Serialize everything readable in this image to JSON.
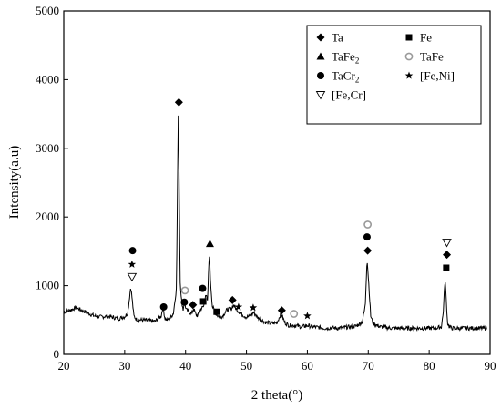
{
  "chart_data": {
    "type": "line",
    "xlabel": "2 theta(°)",
    "ylabel": "Intensity(a.u)",
    "xlim": [
      20,
      90
    ],
    "ylim": [
      0,
      5000
    ],
    "xticks": [
      "20",
      "30",
      "40",
      "50",
      "60",
      "70",
      "80",
      "90"
    ],
    "yticks": [
      "0",
      "1000",
      "2000",
      "3000",
      "4000",
      "5000"
    ],
    "grid": false,
    "legend_position": "top-right",
    "legend": [
      {
        "key": "Ta",
        "label": "Ta",
        "marker": "diamond",
        "hollow": false
      },
      {
        "key": "Fe",
        "label": "Fe",
        "marker": "square",
        "hollow": false
      },
      {
        "key": "TaFe2",
        "label": "TaFe",
        "sub": "2",
        "marker": "triangle",
        "hollow": false
      },
      {
        "key": "TaFe",
        "label": "TaFe",
        "marker": "ring",
        "hollow": true
      },
      {
        "key": "TaCr2",
        "label": "TaCr",
        "sub": "2",
        "marker": "circle",
        "hollow": false
      },
      {
        "key": "FeNi",
        "label": "[Fe,Ni]",
        "marker": "star",
        "hollow": false
      },
      {
        "key": "FeCr",
        "label": "[Fe,Cr]",
        "marker": "triangle-down",
        "hollow": true
      }
    ],
    "pattern": {
      "x": [
        20,
        21,
        22,
        23,
        24,
        25,
        26,
        27,
        28,
        29,
        30,
        30.5,
        31,
        31.2,
        31.5,
        32,
        33,
        34,
        35,
        36,
        36.3,
        36.6,
        37,
        37.5,
        38,
        38.5,
        38.8,
        38.9,
        39.1,
        39.3,
        39.6,
        39.8,
        40.1,
        40.5,
        41,
        41.3,
        41.7,
        42,
        42.5,
        43,
        43.3,
        43.6,
        43.9,
        44.1,
        44.4,
        44.8,
        45.3,
        46,
        46.8,
        47.5,
        47.9,
        48.3,
        48.8,
        49.3,
        50,
        50.6,
        51.2,
        51.8,
        52.5,
        53,
        54,
        55,
        55.7,
        56.3,
        57,
        58,
        59,
        60,
        61,
        62,
        63,
        64,
        65,
        66,
        67,
        68,
        69,
        69.5,
        69.8,
        70.1,
        70.4,
        70.8,
        71.5,
        72,
        73,
        74,
        75,
        76,
        77,
        78,
        79,
        80,
        81,
        82,
        82.3,
        82.6,
        82.8,
        83,
        83.3,
        83.8,
        85,
        86,
        87,
        88,
        89,
        89.5
      ],
      "y": [
        620,
        640,
        680,
        640,
        600,
        560,
        545,
        555,
        540,
        520,
        550,
        600,
        990,
        830,
        560,
        500,
        500,
        490,
        480,
        560,
        700,
        520,
        500,
        530,
        600,
        960,
        3500,
        2900,
        1100,
        800,
        650,
        770,
        650,
        620,
        590,
        670,
        580,
        560,
        660,
        700,
        890,
        760,
        1490,
        1050,
        700,
        620,
        560,
        550,
        650,
        660,
        720,
        660,
        620,
        580,
        540,
        560,
        610,
        540,
        500,
        470,
        450,
        460,
        600,
        460,
        420,
        420,
        400,
        420,
        400,
        390,
        380,
        385,
        380,
        390,
        400,
        410,
        470,
        700,
        1400,
        1000,
        560,
        450,
        420,
        400,
        390,
        380,
        380,
        375,
        380,
        380,
        380,
        380,
        380,
        400,
        600,
        1100,
        800,
        460,
        400,
        380,
        380,
        380,
        380,
        380,
        380,
        380
      ]
    },
    "markers": [
      {
        "symbol": "circle",
        "x": 31.3,
        "y": 1510
      },
      {
        "symbol": "star",
        "x": 31.2,
        "y": 1310
      },
      {
        "symbol": "triangle-down",
        "x": 31.2,
        "y": 1130
      },
      {
        "symbol": "circle",
        "x": 36.4,
        "y": 690
      },
      {
        "symbol": "diamond",
        "x": 38.9,
        "y": 3670
      },
      {
        "symbol": "ring",
        "x": 39.9,
        "y": 930
      },
      {
        "symbol": "circle",
        "x": 39.8,
        "y": 760
      },
      {
        "symbol": "diamond",
        "x": 41.2,
        "y": 720
      },
      {
        "symbol": "circle",
        "x": 42.8,
        "y": 960
      },
      {
        "symbol": "square",
        "x": 42.9,
        "y": 770
      },
      {
        "symbol": "triangle",
        "x": 44.0,
        "y": 1610
      },
      {
        "symbol": "square",
        "x": 45.1,
        "y": 620
      },
      {
        "symbol": "diamond",
        "x": 47.7,
        "y": 790
      },
      {
        "symbol": "star",
        "x": 48.7,
        "y": 690
      },
      {
        "symbol": "star",
        "x": 51.1,
        "y": 680
      },
      {
        "symbol": "diamond",
        "x": 55.8,
        "y": 640
      },
      {
        "symbol": "ring",
        "x": 57.8,
        "y": 590
      },
      {
        "symbol": "star",
        "x": 60.0,
        "y": 560
      },
      {
        "symbol": "ring",
        "x": 69.9,
        "y": 1890
      },
      {
        "symbol": "circle",
        "x": 69.8,
        "y": 1710
      },
      {
        "symbol": "diamond",
        "x": 69.9,
        "y": 1510
      },
      {
        "symbol": "triangle-down",
        "x": 82.9,
        "y": 1630
      },
      {
        "symbol": "diamond",
        "x": 82.9,
        "y": 1450
      },
      {
        "symbol": "square",
        "x": 82.8,
        "y": 1260
      }
    ]
  }
}
